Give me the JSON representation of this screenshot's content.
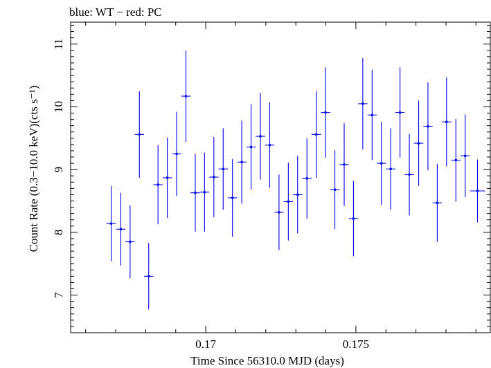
{
  "chart_data": {
    "type": "scatter",
    "title": "blue: WT − red: PC",
    "xlabel": "Time Since 56310.0 MJD (days)",
    "ylabel": "Count Rate (0.3−10.0 keV)(cts s⁻¹)",
    "xlim": [
      0.1655,
      0.1795
    ],
    "ylim": [
      6.4,
      11.35
    ],
    "x_ticks": [
      0.17,
      0.175
    ],
    "x_tick_labels": [
      "0.17",
      "0.175"
    ],
    "y_ticks": [
      7,
      8,
      9,
      10,
      11
    ],
    "y_tick_labels": [
      "7",
      "8",
      "9",
      "10",
      "11"
    ],
    "grid": false,
    "colors": {
      "WT": "#0000ee",
      "PC": "#ff0000",
      "axis": "#000000"
    },
    "series": [
      {
        "name": "WT",
        "x_err": 0.000155,
        "points": [
          {
            "x": 0.16685,
            "y": 8.14,
            "yerr": 0.6
          },
          {
            "x": 0.16717,
            "y": 8.05,
            "yerr": 0.58
          },
          {
            "x": 0.16748,
            "y": 7.85,
            "yerr": 0.58
          },
          {
            "x": 0.16779,
            "y": 9.56,
            "yerr": 0.69
          },
          {
            "x": 0.1681,
            "y": 7.3,
            "yerr": 0.53
          },
          {
            "x": 0.16841,
            "y": 8.76,
            "yerr": 0.63
          },
          {
            "x": 0.16872,
            "y": 8.87,
            "yerr": 0.64
          },
          {
            "x": 0.16903,
            "y": 9.25,
            "yerr": 0.67
          },
          {
            "x": 0.16934,
            "y": 10.17,
            "yerr": 0.73
          },
          {
            "x": 0.16965,
            "y": 8.63,
            "yerr": 0.62
          },
          {
            "x": 0.16996,
            "y": 8.64,
            "yerr": 0.63
          },
          {
            "x": 0.17027,
            "y": 8.88,
            "yerr": 0.64
          },
          {
            "x": 0.17058,
            "y": 9.01,
            "yerr": 0.65
          },
          {
            "x": 0.17089,
            "y": 8.55,
            "yerr": 0.62
          },
          {
            "x": 0.1712,
            "y": 9.12,
            "yerr": 0.66
          },
          {
            "x": 0.17151,
            "y": 9.36,
            "yerr": 0.68
          },
          {
            "x": 0.17182,
            "y": 9.53,
            "yerr": 0.69
          },
          {
            "x": 0.17213,
            "y": 9.39,
            "yerr": 0.68
          },
          {
            "x": 0.17244,
            "y": 8.32,
            "yerr": 0.6
          },
          {
            "x": 0.17275,
            "y": 8.49,
            "yerr": 0.62
          },
          {
            "x": 0.17306,
            "y": 8.6,
            "yerr": 0.62
          },
          {
            "x": 0.17337,
            "y": 8.86,
            "yerr": 0.64
          },
          {
            "x": 0.17368,
            "y": 9.56,
            "yerr": 0.69
          },
          {
            "x": 0.17399,
            "y": 9.91,
            "yerr": 0.72
          },
          {
            "x": 0.1743,
            "y": 8.68,
            "yerr": 0.63
          },
          {
            "x": 0.17461,
            "y": 9.08,
            "yerr": 0.66
          },
          {
            "x": 0.17492,
            "y": 8.22,
            "yerr": 0.6
          },
          {
            "x": 0.17523,
            "y": 10.05,
            "yerr": 0.73
          },
          {
            "x": 0.17554,
            "y": 9.87,
            "yerr": 0.72
          },
          {
            "x": 0.17585,
            "y": 9.1,
            "yerr": 0.66
          },
          {
            "x": 0.17616,
            "y": 9.01,
            "yerr": 0.65
          },
          {
            "x": 0.17647,
            "y": 9.91,
            "yerr": 0.72
          },
          {
            "x": 0.17678,
            "y": 8.92,
            "yerr": 0.65
          },
          {
            "x": 0.17709,
            "y": 9.42,
            "yerr": 0.68
          },
          {
            "x": 0.1774,
            "y": 9.69,
            "yerr": 0.7
          },
          {
            "x": 0.17771,
            "y": 8.47,
            "yerr": 0.62
          },
          {
            "x": 0.17802,
            "y": 9.76,
            "yerr": 0.71
          },
          {
            "x": 0.17833,
            "y": 9.15,
            "yerr": 0.66
          },
          {
            "x": 0.17864,
            "y": 9.22,
            "yerr": 0.66
          },
          {
            "x": 0.17905,
            "y": 8.66,
            "yerr": 0.5,
            "xerr": 0.00025
          }
        ]
      }
    ]
  }
}
